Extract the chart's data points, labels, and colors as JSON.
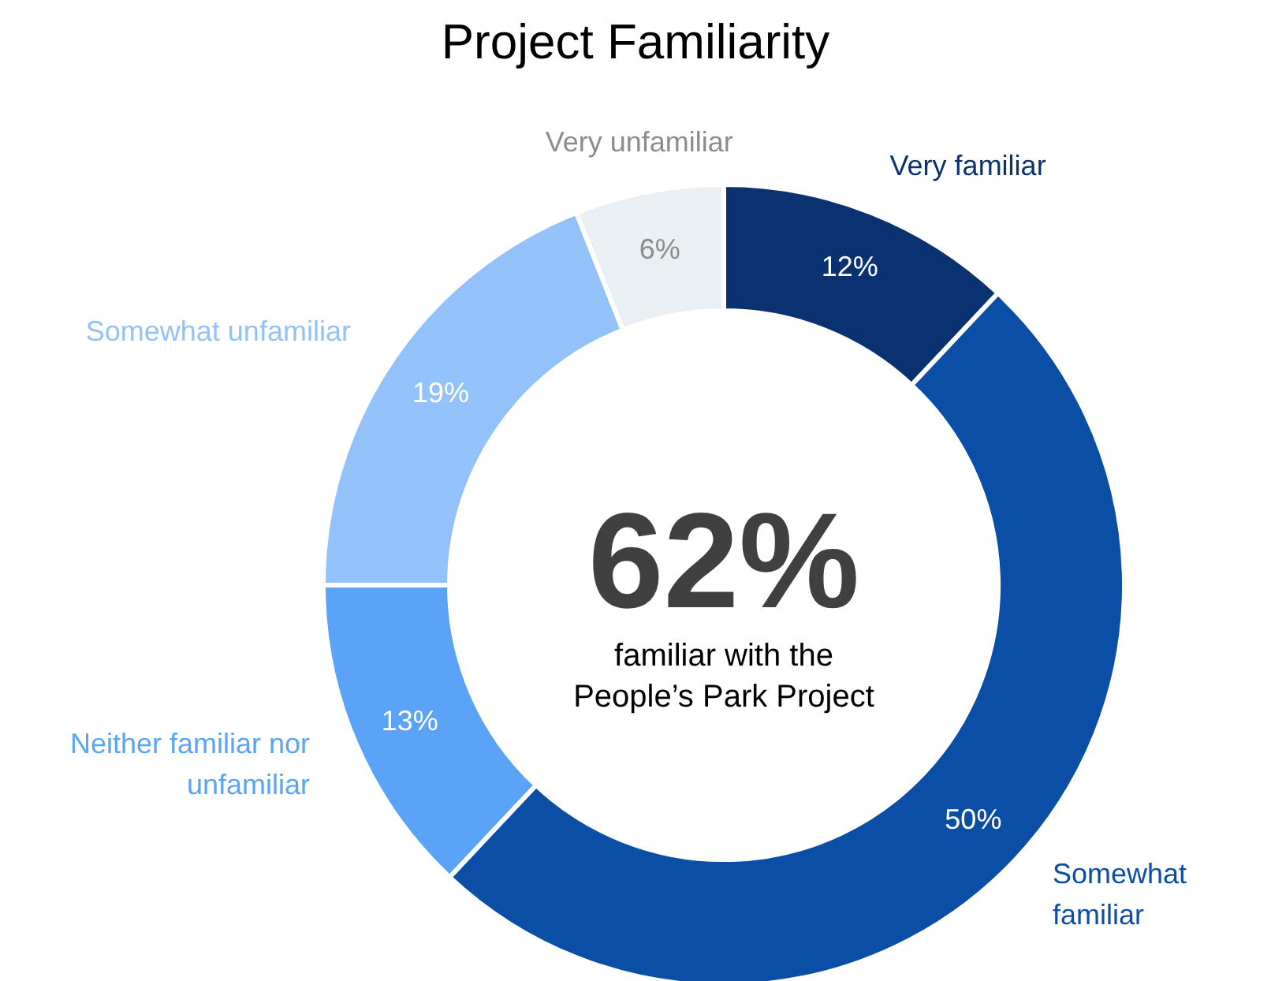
{
  "chart_data": {
    "type": "donut",
    "title": "Project Familiarity",
    "categories": [
      "Very familiar",
      "Somewhat\nfamiliar",
      "Neither familiar nor\nunfamiliar",
      "Somewhat unfamiliar",
      "Very unfamiliar"
    ],
    "values": [
      12,
      50,
      13,
      19,
      6
    ],
    "value_labels": [
      "12%",
      "50%",
      "13%",
      "19%",
      "6%"
    ],
    "colors": [
      "#0a3170",
      "#0a4ea5",
      "#5ba3f6",
      "#93c1f9",
      "#e9eff3"
    ],
    "annotations": [
      "62%",
      "familiar with the\nPeople’s Park Project"
    ],
    "legend": false
  }
}
